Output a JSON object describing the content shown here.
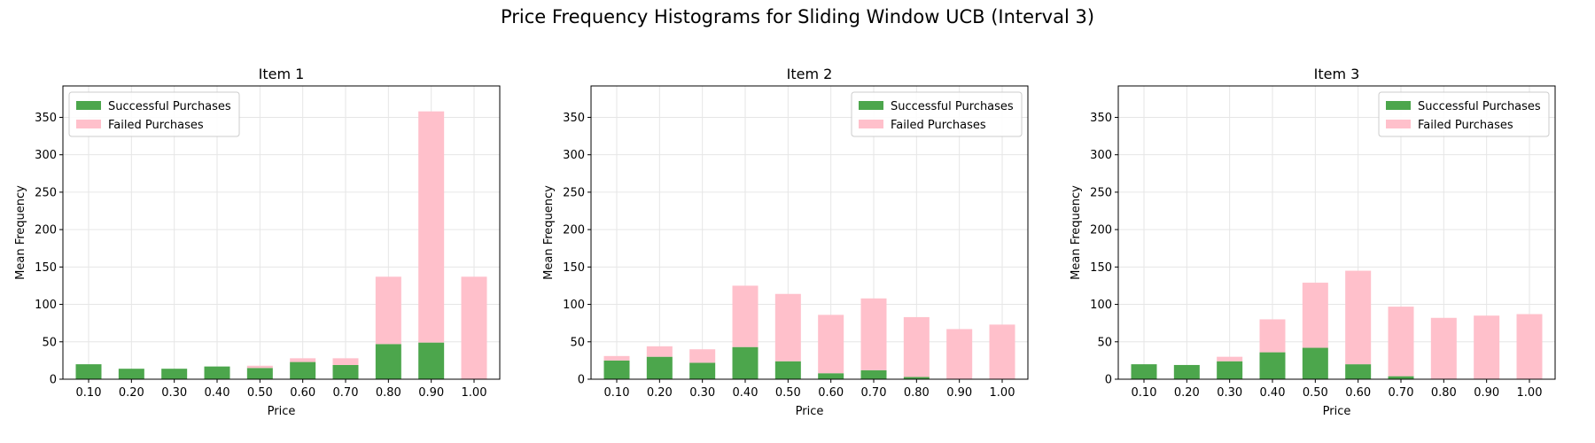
{
  "suptitle": "Price Frequency Histograms for Sliding Window UCB (Interval 3)",
  "colors": {
    "success": "#4ca64c",
    "failed": "#ffc0cb"
  },
  "legend": {
    "success_label": "Successful Purchases",
    "failed_label": "Failed Purchases"
  },
  "chart_data": [
    {
      "type": "bar",
      "title": "Item 1",
      "xlabel": "Price",
      "ylabel": "Mean Frequency",
      "categories": [
        "0.10",
        "0.20",
        "0.30",
        "0.40",
        "0.50",
        "0.60",
        "0.70",
        "0.80",
        "0.90",
        "1.00"
      ],
      "ylim": [
        0,
        392
      ],
      "yticks": [
        0,
        50,
        100,
        150,
        200,
        250,
        300,
        350
      ],
      "grid": true,
      "legend_position": "upper-left",
      "stacked": true,
      "series": [
        {
          "name": "Successful Purchases",
          "values": [
            20,
            14,
            14,
            17,
            15,
            23,
            19,
            47,
            49,
            0
          ]
        },
        {
          "name": "Failed Purchases",
          "values": [
            0,
            0,
            0,
            0,
            3,
            5,
            9,
            90,
            309,
            137
          ]
        }
      ]
    },
    {
      "type": "bar",
      "title": "Item 2",
      "xlabel": "Price",
      "ylabel": "Mean Frequency",
      "categories": [
        "0.10",
        "0.20",
        "0.30",
        "0.40",
        "0.50",
        "0.60",
        "0.70",
        "0.80",
        "0.90",
        "1.00"
      ],
      "ylim": [
        0,
        392
      ],
      "yticks": [
        0,
        50,
        100,
        150,
        200,
        250,
        300,
        350
      ],
      "grid": true,
      "legend_position": "upper-right",
      "stacked": true,
      "series": [
        {
          "name": "Successful Purchases",
          "values": [
            25,
            30,
            22,
            43,
            24,
            8,
            12,
            3,
            0,
            0
          ]
        },
        {
          "name": "Failed Purchases",
          "values": [
            6,
            14,
            18,
            82,
            90,
            78,
            96,
            80,
            67,
            73
          ]
        }
      ]
    },
    {
      "type": "bar",
      "title": "Item 3",
      "xlabel": "Price",
      "ylabel": "Mean Frequency",
      "categories": [
        "0.10",
        "0.20",
        "0.30",
        "0.40",
        "0.50",
        "0.60",
        "0.70",
        "0.80",
        "0.90",
        "1.00"
      ],
      "ylim": [
        0,
        392
      ],
      "yticks": [
        0,
        50,
        100,
        150,
        200,
        250,
        300,
        350
      ],
      "grid": true,
      "legend_position": "upper-right",
      "stacked": true,
      "series": [
        {
          "name": "Successful Purchases",
          "values": [
            20,
            19,
            24,
            36,
            42,
            20,
            4,
            0,
            0,
            0
          ]
        },
        {
          "name": "Failed Purchases",
          "values": [
            0,
            0,
            6,
            44,
            87,
            125,
            93,
            82,
            85,
            87
          ]
        }
      ]
    }
  ]
}
